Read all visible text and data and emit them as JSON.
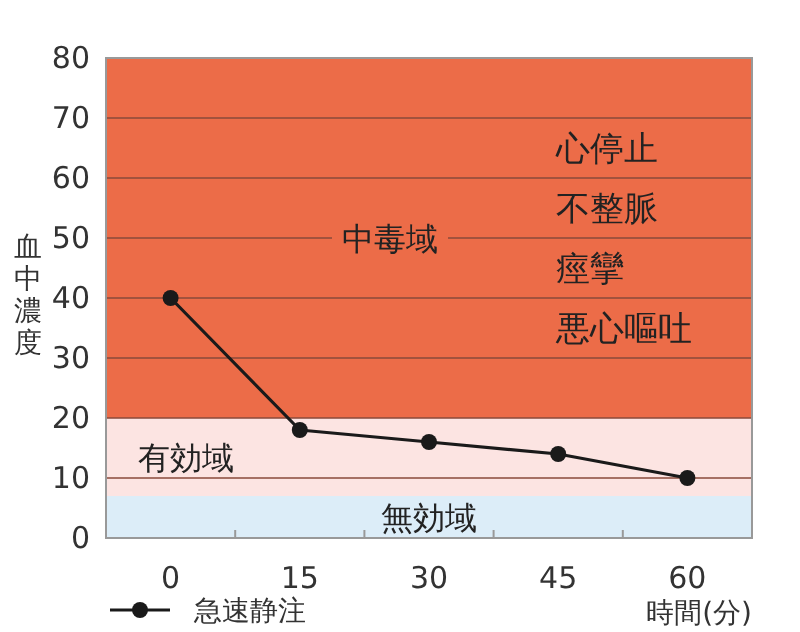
{
  "chart_data": {
    "type": "line",
    "ylabel": "血中濃度",
    "xlabel": "時間(分)",
    "x": [
      0,
      15,
      30,
      45,
      60
    ],
    "series": [
      {
        "name": "急速静注",
        "color": "#1a1a1a",
        "values": [
          40,
          18,
          16,
          14,
          10
        ]
      }
    ],
    "xlim": [
      -7.5,
      67.5
    ],
    "xticks": [
      0,
      {
        "value": 7.5,
        "label": null
      },
      15,
      {
        "value": 22.5,
        "label": null
      },
      30,
      {
        "value": 37.5,
        "label": null
      },
      45,
      {
        "value": 52.5,
        "label": null
      },
      60
    ],
    "ylim": [
      0,
      80
    ],
    "yticks": [
      0,
      10,
      20,
      30,
      40,
      50,
      60,
      70,
      80
    ],
    "bands": [
      {
        "axis": "y",
        "from": 0,
        "to": 7,
        "label": "無効域",
        "color": "#dcedf8"
      },
      {
        "axis": "y",
        "from": 7,
        "to": 20,
        "label": "有効域",
        "color": "#fce4e2"
      },
      {
        "axis": "y",
        "from": 20,
        "to": 80,
        "label": "中毒域",
        "color": "#ec6c48"
      }
    ],
    "annotations": [
      "心停止",
      "不整脈",
      "痙攣",
      "悪心嘔吐"
    ],
    "grid": "y",
    "legend": "bottom left",
    "marker": "circle",
    "line_style": "solid"
  }
}
